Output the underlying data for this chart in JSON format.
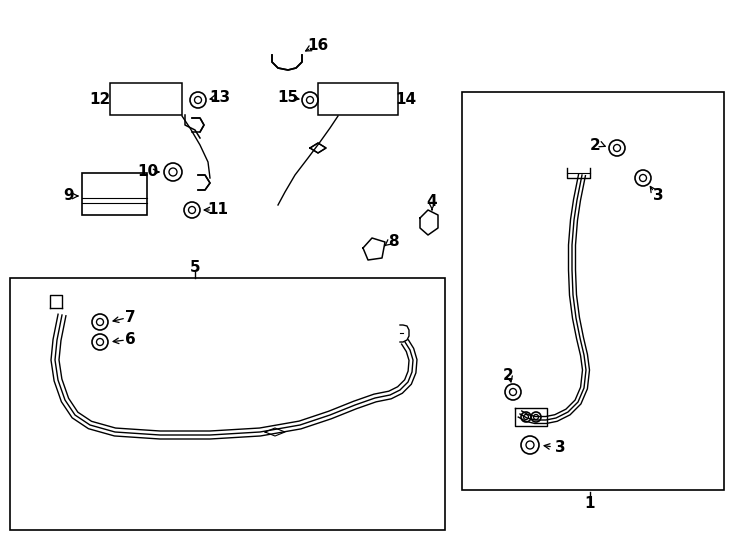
{
  "bg_color": "#ffffff",
  "line_color": "#000000",
  "label_color": "#000000",
  "figure_width": 7.34,
  "figure_height": 5.4,
  "dpi": 100
}
